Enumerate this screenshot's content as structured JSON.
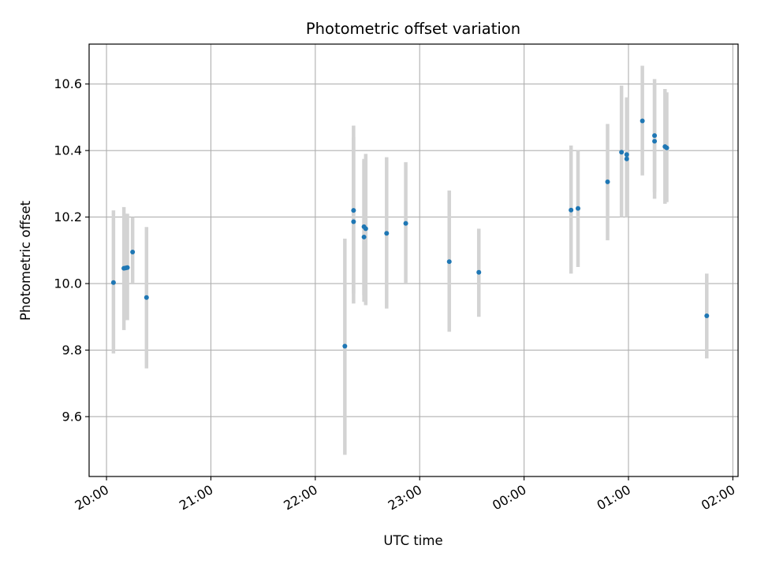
{
  "chart_data": {
    "type": "scatter",
    "title": "Photometric offset variation",
    "xlabel": "UTC time",
    "ylabel": "Photometric offset",
    "x_axis": {
      "kind": "time",
      "range": [
        "19:50",
        "02:03"
      ],
      "ticks": [
        "20:00",
        "21:00",
        "22:00",
        "23:00",
        "00:00",
        "01:00",
        "02:00"
      ]
    },
    "y_axis": {
      "range": [
        9.42,
        10.72
      ],
      "ticks": [
        "9.6",
        "9.8",
        "10.0",
        "10.2",
        "10.4",
        "10.6"
      ]
    },
    "grid": true,
    "colors": {
      "point": "#1f77b4",
      "errorbar": "#d3d3d3",
      "grid": "#b0b0b0"
    },
    "points": [
      {
        "t": "20:04",
        "y": 10.003,
        "lo": 9.79,
        "hi": 10.22
      },
      {
        "t": "20:10",
        "y": 10.046,
        "lo": 9.86,
        "hi": 10.23
      },
      {
        "t": "20:11",
        "y": 10.047,
        "lo": 9.89,
        "hi": 10.21
      },
      {
        "t": "20:12",
        "y": 10.048,
        "lo": 9.89,
        "hi": 10.21
      },
      {
        "t": "20:15",
        "y": 10.095,
        "lo": 10.0,
        "hi": 10.2
      },
      {
        "t": "20:23",
        "y": 9.958,
        "lo": 9.745,
        "hi": 10.17
      },
      {
        "t": "22:17",
        "y": 9.812,
        "lo": 9.485,
        "hi": 10.135
      },
      {
        "t": "22:22",
        "y": 10.22,
        "lo": 9.97,
        "hi": 10.475
      },
      {
        "t": "22:22",
        "y": 10.186,
        "lo": 9.94,
        "hi": 10.44
      },
      {
        "t": "22:28",
        "y": 10.14,
        "lo": 9.945,
        "hi": 10.37
      },
      {
        "t": "22:28",
        "y": 10.171,
        "lo": 9.965,
        "hi": 10.375
      },
      {
        "t": "22:29",
        "y": 10.165,
        "lo": 9.935,
        "hi": 10.39
      },
      {
        "t": "22:41",
        "y": 10.151,
        "lo": 9.925,
        "hi": 10.38
      },
      {
        "t": "22:52",
        "y": 10.181,
        "lo": 10.0,
        "hi": 10.365
      },
      {
        "t": "23:17",
        "y": 10.066,
        "lo": 9.855,
        "hi": 10.28
      },
      {
        "t": "23:34",
        "y": 10.034,
        "lo": 9.9,
        "hi": 10.165
      },
      {
        "t": "00:27",
        "y": 10.221,
        "lo": 10.03,
        "hi": 10.415
      },
      {
        "t": "00:31",
        "y": 10.226,
        "lo": 10.05,
        "hi": 10.4
      },
      {
        "t": "00:48",
        "y": 10.306,
        "lo": 10.13,
        "hi": 10.48
      },
      {
        "t": "00:56",
        "y": 10.395,
        "lo": 10.2,
        "hi": 10.595
      },
      {
        "t": "00:59",
        "y": 10.375,
        "lo": 10.2,
        "hi": 10.555
      },
      {
        "t": "00:59",
        "y": 10.388,
        "lo": 10.22,
        "hi": 10.56
      },
      {
        "t": "01:08",
        "y": 10.489,
        "lo": 10.325,
        "hi": 10.655
      },
      {
        "t": "01:15",
        "y": 10.428,
        "lo": 10.255,
        "hi": 10.6
      },
      {
        "t": "01:15",
        "y": 10.445,
        "lo": 10.275,
        "hi": 10.615
      },
      {
        "t": "01:21",
        "y": 10.412,
        "lo": 10.24,
        "hi": 10.585
      },
      {
        "t": "01:22",
        "y": 10.408,
        "lo": 10.245,
        "hi": 10.575
      },
      {
        "t": "01:45",
        "y": 9.903,
        "lo": 9.775,
        "hi": 10.03
      }
    ]
  }
}
